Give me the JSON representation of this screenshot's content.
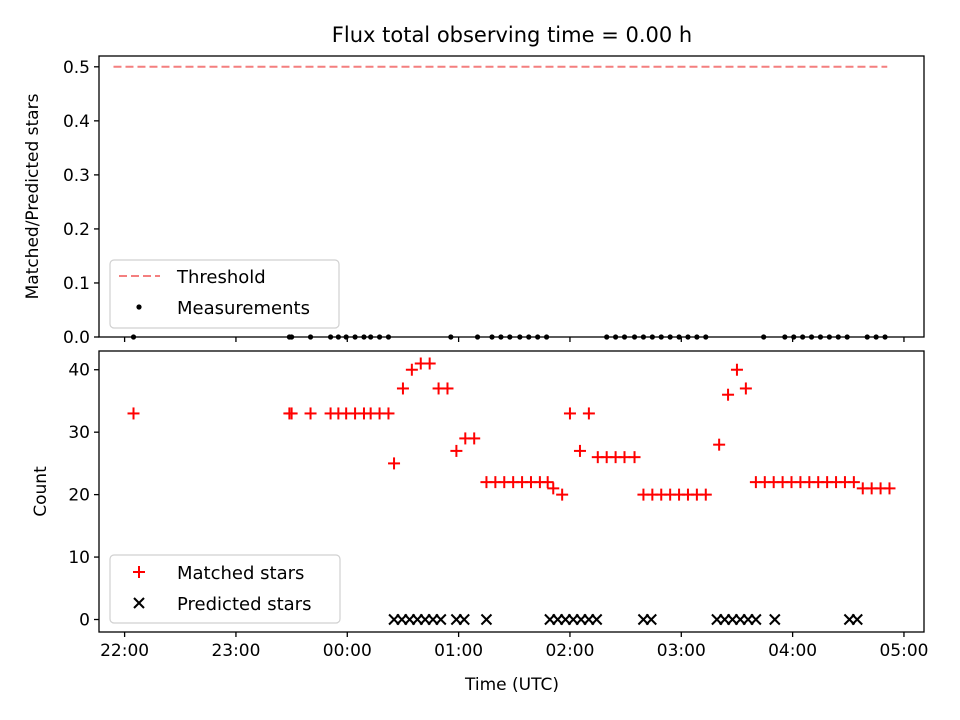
{
  "colors": {
    "threshold": "#f47f7f",
    "measurement": "#000000",
    "matched": "#ff0000",
    "predicted": "#000000"
  },
  "chart_data": [
    {
      "type": "line+scatter",
      "title": "Flux total observing time = 0.00 h",
      "xlabel": "",
      "ylabel": "Matched/Predicted stars",
      "xlim": [
        -2.23,
        5.18
      ],
      "ylim": [
        0,
        0.52
      ],
      "xticks": [
        -2,
        -1,
        0,
        1,
        2,
        3,
        4,
        5
      ],
      "yticks": [
        0.0,
        0.1,
        0.2,
        0.3,
        0.4,
        0.5
      ],
      "ytick_labels": [
        "0.0",
        "0.1",
        "0.2",
        "0.3",
        "0.4",
        "0.5"
      ],
      "legend": {
        "position": "lower-left",
        "entries": [
          {
            "label": "Threshold",
            "marker": "dashed-line",
            "color": "#f47f7f"
          },
          {
            "label": "Measurements",
            "marker": "dot",
            "color": "#000000"
          }
        ]
      },
      "series": [
        {
          "name": "Threshold",
          "kind": "dashed-line",
          "x": [
            -2.1,
            4.85
          ],
          "y": [
            0.5,
            0.5
          ]
        },
        {
          "name": "Measurements",
          "kind": "dot",
          "x": [
            -1.92,
            -0.52,
            -0.5,
            -0.33,
            -0.15,
            -0.08,
            -0.01,
            0.07,
            0.15,
            0.21,
            0.29,
            0.37,
            0.93,
            1.17,
            1.3,
            1.38,
            1.46,
            1.55,
            1.63,
            1.71,
            1.79,
            2.33,
            2.41,
            2.49,
            2.58,
            2.66,
            2.74,
            2.82,
            2.9,
            2.98,
            3.06,
            3.14,
            3.22,
            3.74,
            3.93,
            4.01,
            4.09,
            4.17,
            4.25,
            4.33,
            4.41,
            4.49,
            4.67,
            4.75,
            4.83
          ],
          "y": [
            0,
            0,
            0,
            0,
            0,
            0,
            0,
            0,
            0,
            0,
            0,
            0,
            0,
            0,
            0,
            0,
            0,
            0,
            0,
            0,
            0,
            0,
            0,
            0,
            0,
            0,
            0,
            0,
            0,
            0,
            0,
            0,
            0,
            0,
            0,
            0,
            0,
            0,
            0,
            0,
            0,
            0,
            0,
            0,
            0
          ]
        }
      ]
    },
    {
      "type": "scatter",
      "title": "",
      "xlabel": "Time (UTC)",
      "ylabel": "Count",
      "xlim": [
        -2.23,
        5.18
      ],
      "ylim": [
        -2,
        43
      ],
      "xticks": [
        -2,
        -1,
        0,
        1,
        2,
        3,
        4,
        5
      ],
      "xtick_labels": [
        "22:00",
        "23:00",
        "00:00",
        "01:00",
        "02:00",
        "03:00",
        "04:00",
        "05:00"
      ],
      "yticks": [
        0,
        10,
        20,
        30,
        40
      ],
      "ytick_labels": [
        "0",
        "10",
        "20",
        "30",
        "40"
      ],
      "legend": {
        "position": "lower-left",
        "entries": [
          {
            "label": "Matched stars",
            "marker": "plus",
            "color": "#ff0000"
          },
          {
            "label": "Predicted stars",
            "marker": "x",
            "color": "#000000"
          }
        ]
      },
      "series": [
        {
          "name": "Matched stars",
          "kind": "plus",
          "x": [
            -1.92,
            -0.52,
            -0.5,
            -0.33,
            -0.15,
            -0.08,
            -0.01,
            0.07,
            0.15,
            0.21,
            0.29,
            0.37,
            0.42,
            0.5,
            0.58,
            0.66,
            0.74,
            0.82,
            0.9,
            0.98,
            1.06,
            1.14,
            1.25,
            1.33,
            1.41,
            1.49,
            1.57,
            1.65,
            1.73,
            1.8,
            1.85,
            1.93,
            2.0,
            2.09,
            2.17,
            2.25,
            2.33,
            2.41,
            2.49,
            2.58,
            2.66,
            2.74,
            2.82,
            2.9,
            2.98,
            3.06,
            3.14,
            3.22,
            3.34,
            3.42,
            3.5,
            3.58,
            3.67,
            3.75,
            3.83,
            3.91,
            3.99,
            4.07,
            4.15,
            4.23,
            4.31,
            4.39,
            4.47,
            4.55,
            4.63,
            4.71,
            4.79,
            4.87
          ],
          "y": [
            33,
            33,
            33,
            33,
            33,
            33,
            33,
            33,
            33,
            33,
            33,
            33,
            25,
            37,
            40,
            41,
            41,
            37,
            37,
            27,
            29,
            29,
            22,
            22,
            22,
            22,
            22,
            22,
            22,
            22,
            21,
            20,
            33,
            27,
            33,
            26,
            26,
            26,
            26,
            26,
            20,
            20,
            20,
            20,
            20,
            20,
            20,
            20,
            28,
            36,
            40,
            37,
            22,
            22,
            22,
            22,
            22,
            22,
            22,
            22,
            22,
            22,
            22,
            22,
            21,
            21,
            21,
            21
          ]
        },
        {
          "name": "Predicted stars",
          "kind": "x",
          "x": [
            0.42,
            0.49,
            0.56,
            0.63,
            0.7,
            0.77,
            0.84,
            0.98,
            1.05,
            1.25,
            1.82,
            1.89,
            1.96,
            2.03,
            2.1,
            2.17,
            2.24,
            2.66,
            2.73,
            3.32,
            3.39,
            3.46,
            3.53,
            3.6,
            3.67,
            3.84,
            4.51,
            4.58
          ],
          "y": [
            0,
            0,
            0,
            0,
            0,
            0,
            0,
            0,
            0,
            0,
            0,
            0,
            0,
            0,
            0,
            0,
            0,
            0,
            0,
            0,
            0,
            0,
            0,
            0,
            0,
            0,
            0,
            0
          ]
        }
      ]
    }
  ]
}
